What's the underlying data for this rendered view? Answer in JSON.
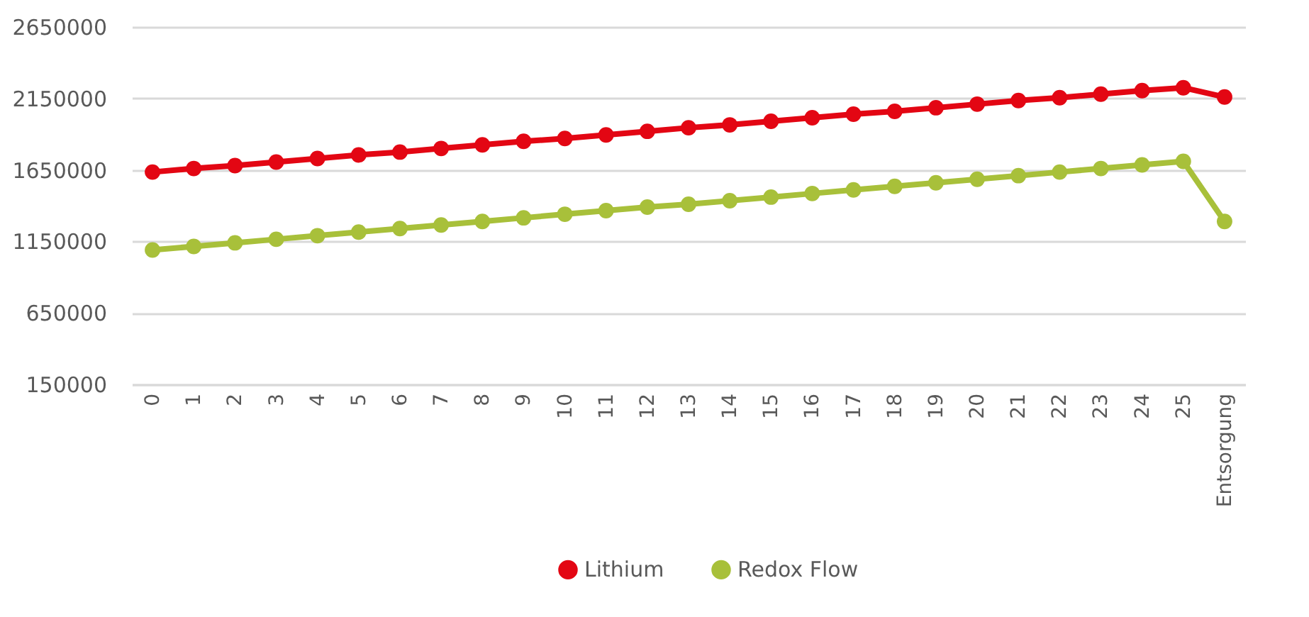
{
  "chart_data": {
    "type": "line",
    "categories": [
      "0",
      "1",
      "2",
      "3",
      "4",
      "5",
      "6",
      "7",
      "8",
      "9",
      "10",
      "11",
      "12",
      "13",
      "14",
      "15",
      "16",
      "17",
      "18",
      "19",
      "20",
      "21",
      "22",
      "23",
      "24",
      "25",
      "Entsorgung"
    ],
    "series": [
      {
        "name": "Lithium",
        "color": "#e30613",
        "values": [
          1635000,
          1660000,
          1680000,
          1705000,
          1730000,
          1755000,
          1775000,
          1800000,
          1825000,
          1850000,
          1870000,
          1895000,
          1920000,
          1945000,
          1965000,
          1990000,
          2015000,
          2040000,
          2060000,
          2085000,
          2110000,
          2135000,
          2155000,
          2180000,
          2205000,
          2225000,
          2160000
        ]
      },
      {
        "name": "Redox Flow",
        "color": "#a8c03a",
        "values": [
          1090000,
          1115000,
          1140000,
          1165000,
          1190000,
          1215000,
          1240000,
          1265000,
          1290000,
          1315000,
          1340000,
          1365000,
          1390000,
          1410000,
          1435000,
          1460000,
          1485000,
          1510000,
          1535000,
          1560000,
          1585000,
          1610000,
          1635000,
          1660000,
          1685000,
          1710000,
          1290000
        ]
      }
    ],
    "ylim": [
      150000,
      2650000
    ],
    "yticks": [
      150000,
      650000,
      1150000,
      1650000,
      2150000,
      2650000
    ],
    "grid": "y",
    "legend": "bottom",
    "marker": "circle",
    "line_style": "solid"
  }
}
